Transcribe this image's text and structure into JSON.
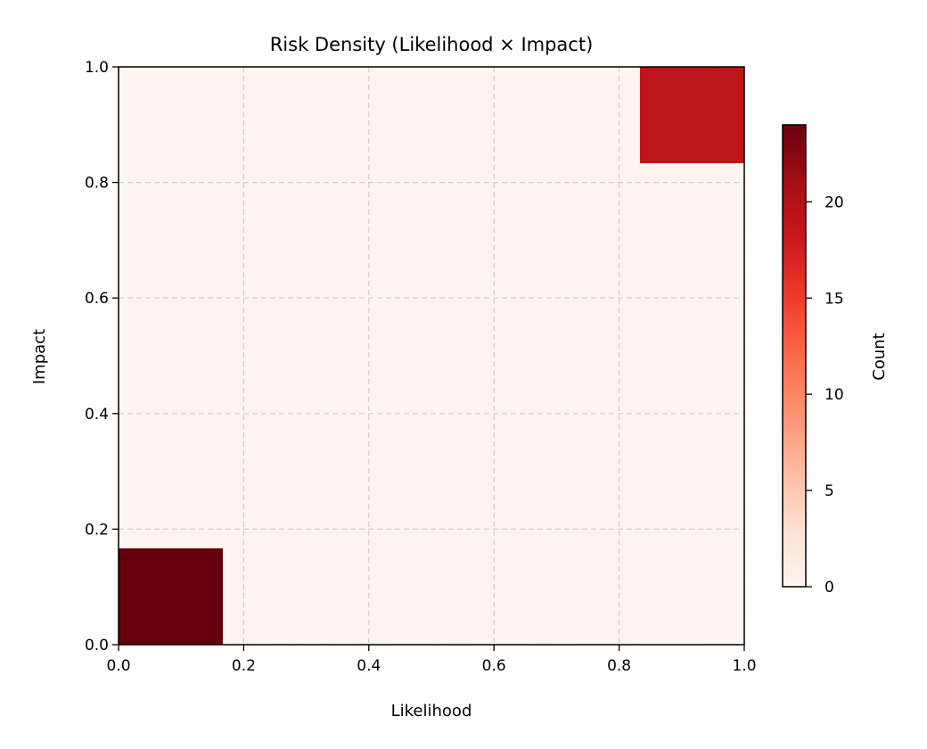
{
  "chart_data": {
    "type": "heatmap",
    "title": "Risk Density (Likelihood × Impact)",
    "xlabel": "Likelihood",
    "ylabel": "Impact",
    "xlim": [
      0,
      1
    ],
    "ylim": [
      0,
      1
    ],
    "xticks": [
      "0.0",
      "0.2",
      "0.4",
      "0.6",
      "0.8",
      "1.0"
    ],
    "yticks": [
      "0.0",
      "0.2",
      "0.4",
      "0.6",
      "0.8",
      "1.0"
    ],
    "grid": true,
    "bins": {
      "x": 6,
      "y": 6
    },
    "cells": [
      {
        "x0": 0.0,
        "x1": 0.1667,
        "y0": 0.0,
        "y1": 0.1667,
        "count": 24
      },
      {
        "x0": 0.8333,
        "x1": 1.0,
        "y0": 0.8333,
        "y1": 1.0,
        "count": 19
      }
    ],
    "background_count": 0,
    "colorbar": {
      "label": "Count",
      "min": 0,
      "max": 24,
      "ticks": [
        "0",
        "5",
        "10",
        "15",
        "20"
      ],
      "colormap": "Reds",
      "colors": [
        "#fff5f0",
        "#fee0d2",
        "#fcbba1",
        "#fc9272",
        "#fb6a4a",
        "#ef3b2c",
        "#cb181d",
        "#a50f15",
        "#67000d"
      ]
    }
  }
}
